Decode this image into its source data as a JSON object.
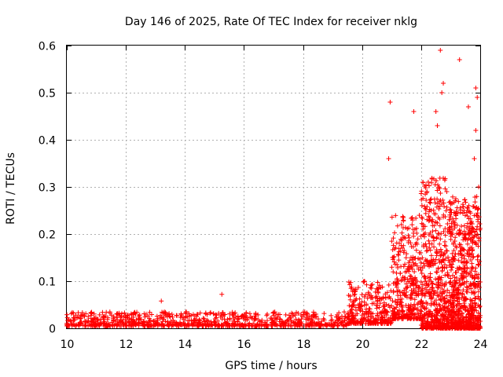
{
  "chart_data": {
    "type": "scatter",
    "title": "Day 146 of 2025, Rate Of TEC Index for receiver nklg",
    "xlabel": "GPS time / hours",
    "ylabel": "ROTI / TECUs",
    "xlim": [
      10,
      24
    ],
    "ylim": [
      0,
      0.6
    ],
    "xticks": [
      10,
      12,
      14,
      16,
      18,
      20,
      22,
      24
    ],
    "yticks": [
      0,
      0.1,
      0.2,
      0.3,
      0.4,
      0.5,
      0.6
    ],
    "xtick_labels": [
      "10",
      "12",
      "14",
      "16",
      "18",
      "20",
      "22",
      "24"
    ],
    "ytick_labels": [
      "0",
      "0.1",
      "0.2",
      "0.3",
      "0.4",
      "0.5",
      "0.6"
    ],
    "grid": true,
    "marker": "+",
    "color": "#ff0000",
    "series": [
      {
        "name": "ROTI",
        "segments": [
          {
            "x_start": 10.0,
            "x_end": 19.5,
            "y_base": 0.005,
            "y_spread": 0.03,
            "count": 900
          },
          {
            "x_start": 19.5,
            "x_end": 21.0,
            "y_base": 0.01,
            "y_spread": 0.09,
            "count": 300
          },
          {
            "x_start": 21.0,
            "x_end": 22.0,
            "y_base": 0.02,
            "y_spread": 0.22,
            "count": 350
          },
          {
            "x_start": 22.0,
            "x_end": 23.0,
            "y_base": 0.0,
            "y_spread": 0.32,
            "count": 600
          },
          {
            "x_start": 23.0,
            "x_end": 24.0,
            "y_base": 0.0,
            "y_spread": 0.28,
            "count": 700
          }
        ],
        "highlights": [
          {
            "x": 13.2,
            "y": 0.058
          },
          {
            "x": 15.25,
            "y": 0.072
          },
          {
            "x": 20.95,
            "y": 0.48
          },
          {
            "x": 20.9,
            "y": 0.36
          },
          {
            "x": 21.75,
            "y": 0.46
          },
          {
            "x": 22.5,
            "y": 0.46
          },
          {
            "x": 22.55,
            "y": 0.43
          },
          {
            "x": 22.65,
            "y": 0.59
          },
          {
            "x": 22.75,
            "y": 0.52
          },
          {
            "x": 22.7,
            "y": 0.5
          },
          {
            "x": 23.3,
            "y": 0.57
          },
          {
            "x": 23.6,
            "y": 0.47
          },
          {
            "x": 23.85,
            "y": 0.51
          },
          {
            "x": 23.9,
            "y": 0.49
          },
          {
            "x": 23.85,
            "y": 0.42
          },
          {
            "x": 23.8,
            "y": 0.36
          },
          {
            "x": 23.95,
            "y": 0.3
          }
        ]
      }
    ]
  }
}
